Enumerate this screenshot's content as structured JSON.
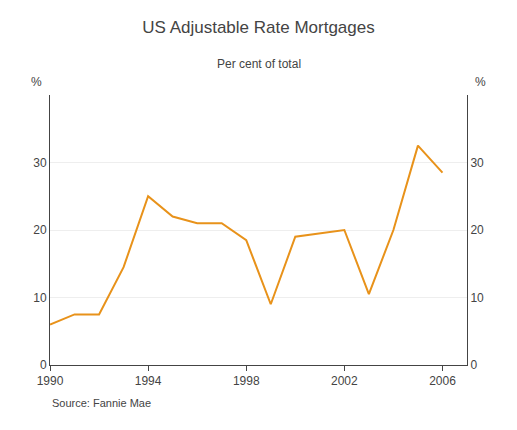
{
  "chart_data": {
    "type": "line",
    "title": "US Adjustable Rate Mortgages",
    "subtitle": "Per cent of total",
    "ylabel": "%",
    "y2label": "%",
    "annotations": [
      "Source: Fannie Mae"
    ],
    "color": "#E8921A",
    "x": [
      1990,
      1991,
      1992,
      1993,
      1994,
      1995,
      1996,
      1997,
      1998,
      1999,
      2000,
      2001,
      2002,
      2003,
      2004,
      2005,
      2006
    ],
    "values": [
      6.0,
      7.5,
      7.5,
      14.5,
      25.0,
      22.0,
      21.0,
      21.0,
      18.5,
      9.0,
      19.0,
      19.5,
      20.0,
      10.5,
      20.0,
      32.5,
      28.5
    ],
    "xlim": [
      1990,
      2007
    ],
    "xticks": [
      1990,
      1994,
      1998,
      2002,
      2006
    ],
    "ylim": [
      0,
      40
    ],
    "yticks": [
      0,
      10,
      20,
      30
    ],
    "y2lim": [
      0,
      40
    ],
    "y2ticks": [
      0,
      10,
      20,
      30
    ],
    "grid": true
  }
}
